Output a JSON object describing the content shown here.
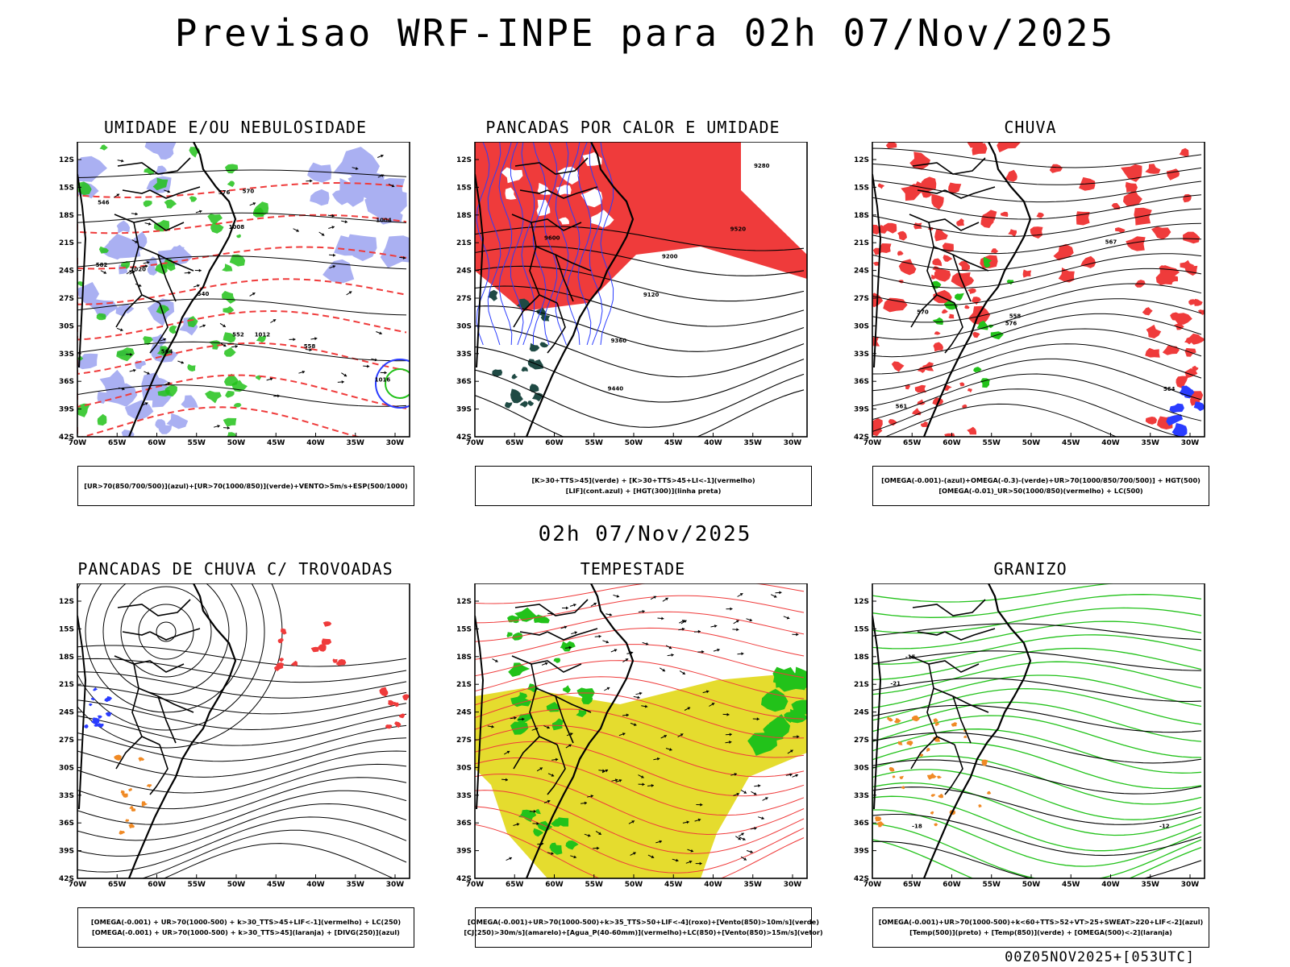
{
  "main_title": "Previsao WRF-INPE  para 02h 07/Nov/2025",
  "mid_title": "02h 07/Nov/2025",
  "footer": "00Z05NOV2025+[053UTC]",
  "axes": {
    "lat_labels": [
      "12S",
      "15S",
      "18S",
      "21S",
      "24S",
      "27S",
      "30S",
      "33S",
      "36S",
      "39S",
      "42S"
    ],
    "lon_labels": [
      "70W",
      "65W",
      "60W",
      "55W",
      "50W",
      "45W",
      "40W",
      "35W",
      "30W"
    ]
  },
  "colors": {
    "red": "#ef3b3b",
    "green": "#22c21a",
    "blue": "#2a3cff",
    "lavender": "#aab0f2",
    "yellow": "#e5dc2e",
    "orange": "#f08a25",
    "darkgreen": "#1f4a44"
  },
  "panels": [
    {
      "id": "umidade",
      "title": "UMIDADE E/OU NEBULOSIDADE",
      "caption": [
        "[UR>70(850/700/500)](azul)+[UR>70(1000/850)](verde)+VENTO>5m/s+ESP(500/1000)"
      ],
      "contour_labels": [
        "1008",
        "1012",
        "1016",
        "1020",
        "1004",
        "582",
        "576",
        "570",
        "564",
        "558",
        "552",
        "546",
        "540"
      ]
    },
    {
      "id": "pancadas-calor",
      "title": "PANCADAS POR CALOR E UMIDADE",
      "caption": [
        "[K>30+TTS>45](verde)  +  [K>30+TTS>45+LI<-1](vermelho)",
        "[LIF](cont.azul)  +  [HGT(300)](linha preta)"
      ],
      "contour_labels": [
        "9600",
        "9520",
        "9440",
        "9360",
        "9280",
        "9200",
        "9120"
      ]
    },
    {
      "id": "chuva",
      "title": "CHUVA",
      "caption": [
        "[OMEGA(-0.001)-(azul)+OMEGA(-0.3)-(verde)+UR>70(1000/850/700/500)]  +  HGT(500)",
        "[OMEGA(-0.01)_UR>50(1000/850)(vermelho)  +  LC(500)"
      ],
      "contour_labels": [
        "576",
        "570",
        "567",
        "564",
        "561",
        "558"
      ]
    },
    {
      "id": "trovoadas",
      "title": "PANCADAS DE CHUVA C/ TROVOADAS",
      "caption": [
        "[OMEGA(-0.001)  +  UR>70(1000-500)  +  k>30_TTS>45+LIF<-1](vermelho)  +  LC(250)",
        "[OMEGA(-0.001)  +  UR>70(1000-500)  +  k>30_TTS>45](laranja)  +  [DIVG(250)](azul)"
      ],
      "contour_labels": []
    },
    {
      "id": "tempestade",
      "title": "TEMPESTADE",
      "caption": [
        "[OMEGA(-0.001)+UR>70(1000-500)+k>35_TTS>50+LIF<-4](roxo)+[Vento(850)>10m/s](verde)",
        "[CJ(250)>30m/s](amarelo)+[Agua_P(40-60mm)](vermelho)+LC(850)+[Vento(850)>15m/s](vetor)"
      ],
      "contour_labels": []
    },
    {
      "id": "granizo",
      "title": "GRANIZO",
      "caption": [
        "[OMEGA(-0.001)+UR>70(1000-500)+k<60+TTS>52+VT>25+SWEAT>220+LIF<-2](azul)",
        "[Temp(500)](preto)  +  [Temp(850)](verde)  +  [OMEGA(500)<-2](laranja)"
      ],
      "contour_labels": [
        "-15",
        "-18",
        "-21",
        "-12"
      ]
    }
  ]
}
